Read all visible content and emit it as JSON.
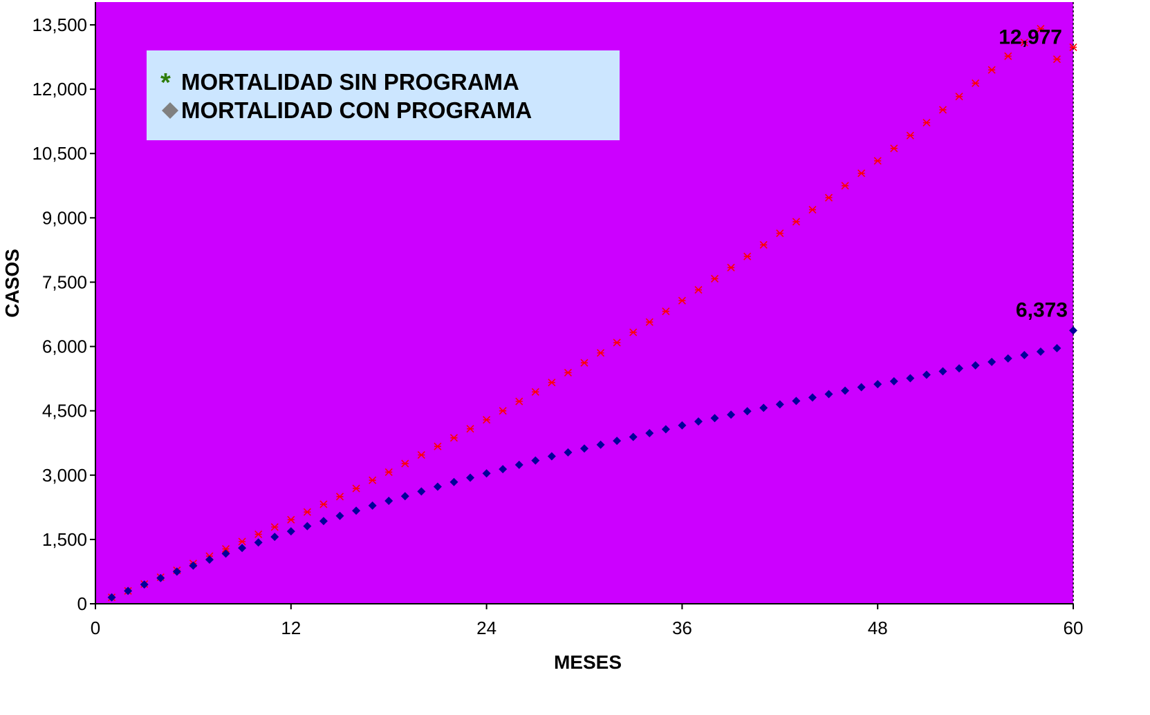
{
  "chart_data": {
    "type": "scatter",
    "title": "",
    "xlabel": "MESES",
    "ylabel": "CASOS",
    "xlim": [
      0,
      60
    ],
    "ylim": [
      0,
      13500
    ],
    "x_ticks": [
      "0",
      "12",
      "24",
      "36",
      "48",
      "60"
    ],
    "y_ticks": [
      "0",
      "1,500",
      "3,000",
      "4,500",
      "6,000",
      "7,500",
      "9,000",
      "10,500",
      "12,000",
      "13,500"
    ],
    "grid": false,
    "legend_position": "top-left",
    "plot_background": "#cc00ff",
    "x": [
      1,
      2,
      3,
      4,
      5,
      6,
      7,
      8,
      9,
      10,
      11,
      12,
      13,
      14,
      15,
      16,
      17,
      18,
      19,
      20,
      21,
      22,
      23,
      24,
      25,
      26,
      27,
      28,
      29,
      30,
      31,
      32,
      33,
      34,
      35,
      36,
      37,
      38,
      39,
      40,
      41,
      42,
      43,
      44,
      45,
      46,
      47,
      48,
      49,
      50,
      51,
      52,
      53,
      54,
      55,
      56,
      57,
      58,
      59,
      60
    ],
    "series": [
      {
        "name": "MORTALIDAD SIN PROGRAMA",
        "marker": "asterisk",
        "legend_marker_color": "#2e7d0c",
        "color": "#ff0000",
        "values": [
          150,
          300,
          460,
          620,
          780,
          940,
          1110,
          1280,
          1450,
          1620,
          1790,
          1960,
          2140,
          2320,
          2500,
          2690,
          2880,
          3070,
          3270,
          3470,
          3670,
          3870,
          4080,
          4290,
          4500,
          4720,
          4940,
          5160,
          5390,
          5620,
          5850,
          6090,
          6330,
          6570,
          6820,
          7070,
          7320,
          7580,
          7840,
          8100,
          8370,
          8640,
          8910,
          9190,
          9470,
          9750,
          10040,
          10330,
          10620,
          10920,
          11220,
          11520,
          11830,
          12140,
          12450,
          12770,
          13090,
          13410,
          12700,
          12977
        ],
        "end_label": "12,977"
      },
      {
        "name": "MORTALIDAD CON PROGRAMA",
        "marker": "diamond",
        "legend_marker_color": "#808080",
        "color": "#000099",
        "values": [
          150,
          300,
          450,
          600,
          750,
          890,
          1030,
          1170,
          1300,
          1430,
          1560,
          1690,
          1810,
          1930,
          2050,
          2170,
          2290,
          2400,
          2510,
          2620,
          2730,
          2840,
          2940,
          3040,
          3140,
          3240,
          3340,
          3440,
          3530,
          3620,
          3710,
          3800,
          3890,
          3980,
          4070,
          4160,
          4250,
          4330,
          4410,
          4490,
          4570,
          4650,
          4730,
          4810,
          4890,
          4970,
          5050,
          5120,
          5190,
          5260,
          5340,
          5420,
          5490,
          5560,
          5640,
          5720,
          5800,
          5880,
          5960,
          6373
        ],
        "end_label": "6,373"
      }
    ]
  }
}
